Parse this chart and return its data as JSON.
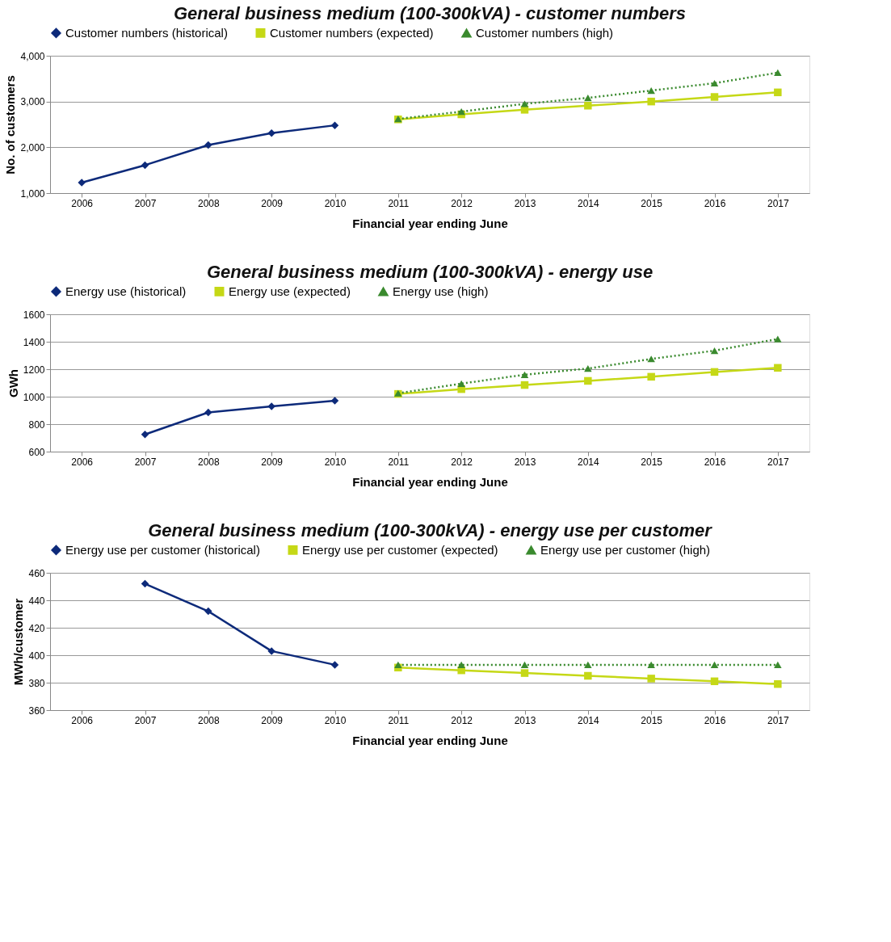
{
  "chart_data": [
    {
      "type": "line",
      "title": "General business medium (100-300kVA) - customer numbers",
      "xlabel": "Financial year ending June",
      "ylabel": "No. of customers",
      "categories": [
        "2006",
        "2007",
        "2008",
        "2009",
        "2010",
        "2011",
        "2012",
        "2013",
        "2014",
        "2015",
        "2016",
        "2017"
      ],
      "series": [
        {
          "name": "Customer numbers (historical)",
          "color": "#0d2a7a",
          "marker": "diamond",
          "line_style": "solid",
          "values": [
            1230,
            1610,
            2050,
            2310,
            2480,
            null,
            null,
            null,
            null,
            null,
            null,
            null
          ]
        },
        {
          "name": "Customer numbers (expected)",
          "color": "#c5d816",
          "marker": "square",
          "line_style": "solid",
          "values": [
            null,
            null,
            null,
            null,
            null,
            2610,
            2720,
            2820,
            2910,
            3000,
            3100,
            3200
          ]
        },
        {
          "name": "Customer numbers (high)",
          "color": "#3a8a2e",
          "marker": "triangle",
          "line_style": "dotted",
          "values": [
            null,
            null,
            null,
            null,
            null,
            2620,
            2780,
            2950,
            3080,
            3240,
            3400,
            3630
          ]
        }
      ],
      "ylim": [
        1000,
        4000
      ],
      "yticks": [
        {
          "value": 1000,
          "label": "1,000"
        },
        {
          "value": 2000,
          "label": "2,000"
        },
        {
          "value": 3000,
          "label": "3,000"
        },
        {
          "value": 4000,
          "label": "4,000"
        }
      ],
      "grid": "y",
      "legend": "top"
    },
    {
      "type": "line",
      "title": "General business medium (100-300kVA) - energy use",
      "xlabel": "Financial year ending June",
      "ylabel": "GWh",
      "categories": [
        "2006",
        "2007",
        "2008",
        "2009",
        "2010",
        "2011",
        "2012",
        "2013",
        "2014",
        "2015",
        "2016",
        "2017"
      ],
      "series": [
        {
          "name": "Energy use (historical)",
          "color": "#0d2a7a",
          "marker": "diamond",
          "line_style": "solid",
          "values": [
            null,
            725,
            885,
            930,
            970,
            null,
            null,
            null,
            null,
            null,
            null,
            null
          ]
        },
        {
          "name": "Energy use (expected)",
          "color": "#c5d816",
          "marker": "square",
          "line_style": "solid",
          "values": [
            null,
            null,
            null,
            null,
            null,
            1020,
            1055,
            1085,
            1115,
            1145,
            1180,
            1210
          ]
        },
        {
          "name": "Energy use (high)",
          "color": "#3a8a2e",
          "marker": "triangle",
          "line_style": "dotted",
          "values": [
            null,
            null,
            null,
            null,
            null,
            1025,
            1095,
            1160,
            1205,
            1275,
            1335,
            1420
          ]
        }
      ],
      "ylim": [
        600,
        1600
      ],
      "yticks": [
        600,
        800,
        1000,
        1200,
        1400,
        1600
      ],
      "grid": "y",
      "legend": "top"
    },
    {
      "type": "line",
      "title": "General business medium (100-300kVA) - energy use per customer",
      "xlabel": "Financial year ending June",
      "ylabel": "MWh/customer",
      "categories": [
        "2006",
        "2007",
        "2008",
        "2009",
        "2010",
        "2011",
        "2012",
        "2013",
        "2014",
        "2015",
        "2016",
        "2017"
      ],
      "series": [
        {
          "name": "Energy use per customer (historical)",
          "color": "#0d2a7a",
          "marker": "diamond",
          "line_style": "solid",
          "values": [
            null,
            452,
            432,
            403,
            393,
            null,
            null,
            null,
            null,
            null,
            null,
            null
          ]
        },
        {
          "name": "Energy use per customer (expected)",
          "color": "#c5d816",
          "marker": "square",
          "line_style": "solid",
          "values": [
            null,
            null,
            null,
            null,
            null,
            391,
            389,
            387,
            385,
            383,
            381,
            379
          ]
        },
        {
          "name": "Energy use per customer (high)",
          "color": "#3a8a2e",
          "marker": "triangle",
          "line_style": "dotted",
          "values": [
            null,
            null,
            null,
            null,
            null,
            393,
            393,
            393,
            393,
            393,
            393,
            393
          ]
        }
      ],
      "ylim": [
        360,
        460
      ],
      "yticks": [
        360,
        380,
        400,
        420,
        440,
        460
      ],
      "grid": "y",
      "legend": "top"
    }
  ]
}
